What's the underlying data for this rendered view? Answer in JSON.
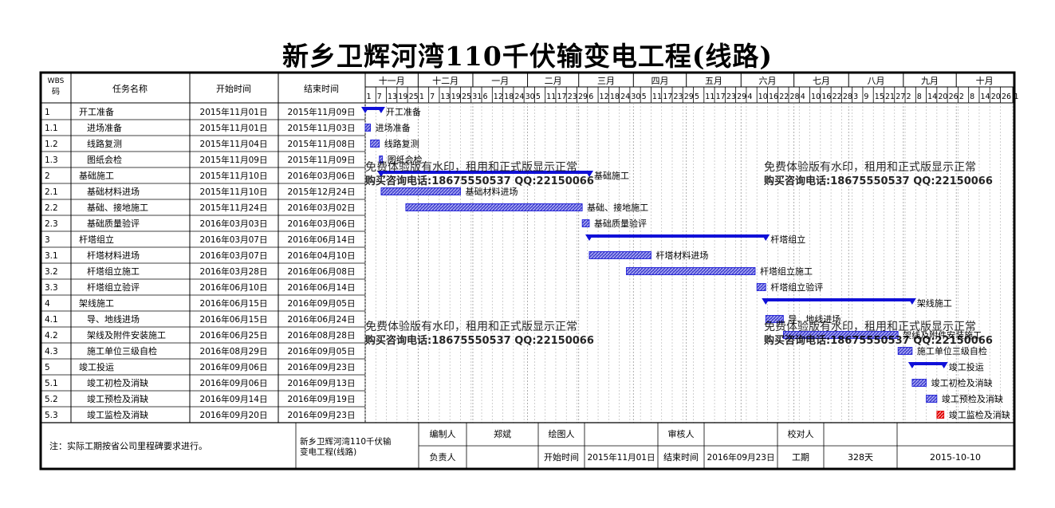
{
  "title": "新乡卫辉河湾110千伏输变电工程(线路)",
  "headers": {
    "wbs": "WBS码",
    "name": "任务名称",
    "start": "开始时间",
    "end": "结束时间"
  },
  "colors": {
    "summary_bar": "#1010d8",
    "task_bar": "#4a4ad0",
    "critical": "#e00000",
    "watermark": "#d8c890"
  },
  "months": [
    {
      "label": "十一月",
      "days": [
        "1",
        "7",
        "13",
        "19",
        "25"
      ]
    },
    {
      "label": "十二月",
      "days": [
        "1",
        "7",
        "13",
        "19",
        "25",
        "31"
      ]
    },
    {
      "label": "一月",
      "days": [
        "6",
        "12",
        "18",
        "24",
        "30"
      ]
    },
    {
      "label": "二月",
      "days": [
        "5",
        "11",
        "17",
        "23",
        "29"
      ]
    },
    {
      "label": "三月",
      "days": [
        "6",
        "12",
        "18",
        "24",
        "30"
      ]
    },
    {
      "label": "四月",
      "days": [
        "5",
        "11",
        "17",
        "23",
        "29"
      ]
    },
    {
      "label": "五月",
      "days": [
        "5",
        "11",
        "17",
        "23",
        "29"
      ]
    },
    {
      "label": "六月",
      "days": [
        "4",
        "10",
        "16",
        "22",
        "28"
      ]
    },
    {
      "label": "七月",
      "days": [
        "4",
        "10",
        "16",
        "22",
        "28"
      ]
    },
    {
      "label": "八月",
      "days": [
        "3",
        "9",
        "15",
        "21",
        "27"
      ]
    },
    {
      "label": "九月",
      "days": [
        "2",
        "8",
        "14",
        "20",
        "26"
      ]
    },
    {
      "label": "十月",
      "days": [
        "2",
        "8",
        "14",
        "20",
        "26",
        "1"
      ]
    }
  ],
  "chart_data": {
    "type": "gantt",
    "tasks": [
      {
        "wbs": "1",
        "name": "开工准备",
        "start": "2015年11月01日",
        "end": "2015年11月09日",
        "s": "2015-11-01",
        "e": "2015-11-09",
        "summary": true,
        "level": 0,
        "critical": false
      },
      {
        "wbs": "1.1",
        "name": "进场准备",
        "start": "2015年11月01日",
        "end": "2015年11月03日",
        "s": "2015-11-01",
        "e": "2015-11-03",
        "summary": false,
        "level": 1,
        "critical": false
      },
      {
        "wbs": "1.2",
        "name": "线路复测",
        "start": "2015年11月04日",
        "end": "2015年11月08日",
        "s": "2015-11-04",
        "e": "2015-11-08",
        "summary": false,
        "level": 1,
        "critical": false
      },
      {
        "wbs": "1.3",
        "name": "图纸会检",
        "start": "2015年11月09日",
        "end": "2015年11月09日",
        "s": "2015-11-09",
        "e": "2015-11-09",
        "summary": false,
        "level": 1,
        "critical": false
      },
      {
        "wbs": "2",
        "name": "基础施工",
        "start": "2015年11月10日",
        "end": "2016年03月06日",
        "s": "2015-11-10",
        "e": "2016-03-06",
        "summary": true,
        "level": 0,
        "critical": false
      },
      {
        "wbs": "2.1",
        "name": "基础材料进场",
        "start": "2015年11月10日",
        "end": "2015年12月24日",
        "s": "2015-11-10",
        "e": "2015-12-24",
        "summary": false,
        "level": 1,
        "critical": false
      },
      {
        "wbs": "2.2",
        "name": "基础、接地施工",
        "start": "2015年11月24日",
        "end": "2016年03月02日",
        "s": "2015-11-24",
        "e": "2016-03-02",
        "summary": false,
        "level": 1,
        "critical": false
      },
      {
        "wbs": "2.3",
        "name": "基础质量验评",
        "start": "2016年03月03日",
        "end": "2016年03月06日",
        "s": "2016-03-03",
        "e": "2016-03-06",
        "summary": false,
        "level": 1,
        "critical": false
      },
      {
        "wbs": "3",
        "name": "杆塔组立",
        "start": "2016年03月07日",
        "end": "2016年06月14日",
        "s": "2016-03-07",
        "e": "2016-06-14",
        "summary": true,
        "level": 0,
        "critical": false
      },
      {
        "wbs": "3.1",
        "name": "杆塔材料进场",
        "start": "2016年03月07日",
        "end": "2016年04月10日",
        "s": "2016-03-07",
        "e": "2016-04-10",
        "summary": false,
        "level": 1,
        "critical": false
      },
      {
        "wbs": "3.2",
        "name": "杆塔组立施工",
        "start": "2016年03月28日",
        "end": "2016年06月08日",
        "s": "2016-03-28",
        "e": "2016-06-08",
        "summary": false,
        "level": 1,
        "critical": false
      },
      {
        "wbs": "3.3",
        "name": "杆塔组立验评",
        "start": "2016年06月10日",
        "end": "2016年06月14日",
        "s": "2016-06-10",
        "e": "2016-06-14",
        "summary": false,
        "level": 1,
        "critical": false
      },
      {
        "wbs": "4",
        "name": "架线施工",
        "start": "2016年06月15日",
        "end": "2016年09月05日",
        "s": "2016-06-15",
        "e": "2016-09-05",
        "summary": true,
        "level": 0,
        "critical": false
      },
      {
        "wbs": "4.1",
        "name": "导、地线进场",
        "start": "2016年06月15日",
        "end": "2016年06月24日",
        "s": "2016-06-15",
        "e": "2016-06-24",
        "summary": false,
        "level": 1,
        "critical": false
      },
      {
        "wbs": "4.2",
        "name": "架线及附件安装施工",
        "start": "2016年06月25日",
        "end": "2016年08月28日",
        "s": "2016-06-25",
        "e": "2016-08-28",
        "summary": false,
        "level": 1,
        "critical": false
      },
      {
        "wbs": "4.3",
        "name": "施工单位三级自检",
        "start": "2016年08月29日",
        "end": "2016年09月05日",
        "s": "2016-08-29",
        "e": "2016-09-05",
        "summary": false,
        "level": 1,
        "critical": false
      },
      {
        "wbs": "5",
        "name": "竣工投运",
        "start": "2016年09月06日",
        "end": "2016年09月23日",
        "s": "2016-09-06",
        "e": "2016-09-23",
        "summary": true,
        "level": 0,
        "critical": false
      },
      {
        "wbs": "5.1",
        "name": "竣工初检及消缺",
        "start": "2016年09月06日",
        "end": "2016年09月13日",
        "s": "2016-09-06",
        "e": "2016-09-13",
        "summary": false,
        "level": 1,
        "critical": false
      },
      {
        "wbs": "5.2",
        "name": "竣工预检及消缺",
        "start": "2016年09月14日",
        "end": "2016年09月19日",
        "s": "2016-09-14",
        "e": "2016-09-19",
        "summary": false,
        "level": 1,
        "critical": false
      },
      {
        "wbs": "5.3",
        "name": "竣工监检及消缺",
        "start": "2016年09月20日",
        "end": "2016年09月23日",
        "s": "2016-09-20",
        "e": "2016-09-23",
        "summary": false,
        "level": 1,
        "critical": true
      }
    ]
  },
  "watermark": {
    "line1": "免费体验版有水印，租用和正式版显示正常",
    "line2": "购买咨询电话:18675550537 QQ:22150066"
  },
  "footer": {
    "note": "注：实际工期按省公司里程碑要求进行。",
    "project": "新乡卫辉河湾110千伏输变电工程(线路)",
    "compiler_label": "编制人",
    "compiler": "郑斌",
    "drawer_label": "绘图人",
    "drawer": "",
    "reviewer_label": "审核人",
    "reviewer": "",
    "checker_label": "校对人",
    "checker": "",
    "owner_label": "负责人",
    "owner": "",
    "start_label": "开始时间",
    "start": "2015年11月01日",
    "end_label": "结束时间",
    "end": "2016年09月23日",
    "duration_label": "工期",
    "duration": "328天",
    "date": "2015-10-10"
  }
}
